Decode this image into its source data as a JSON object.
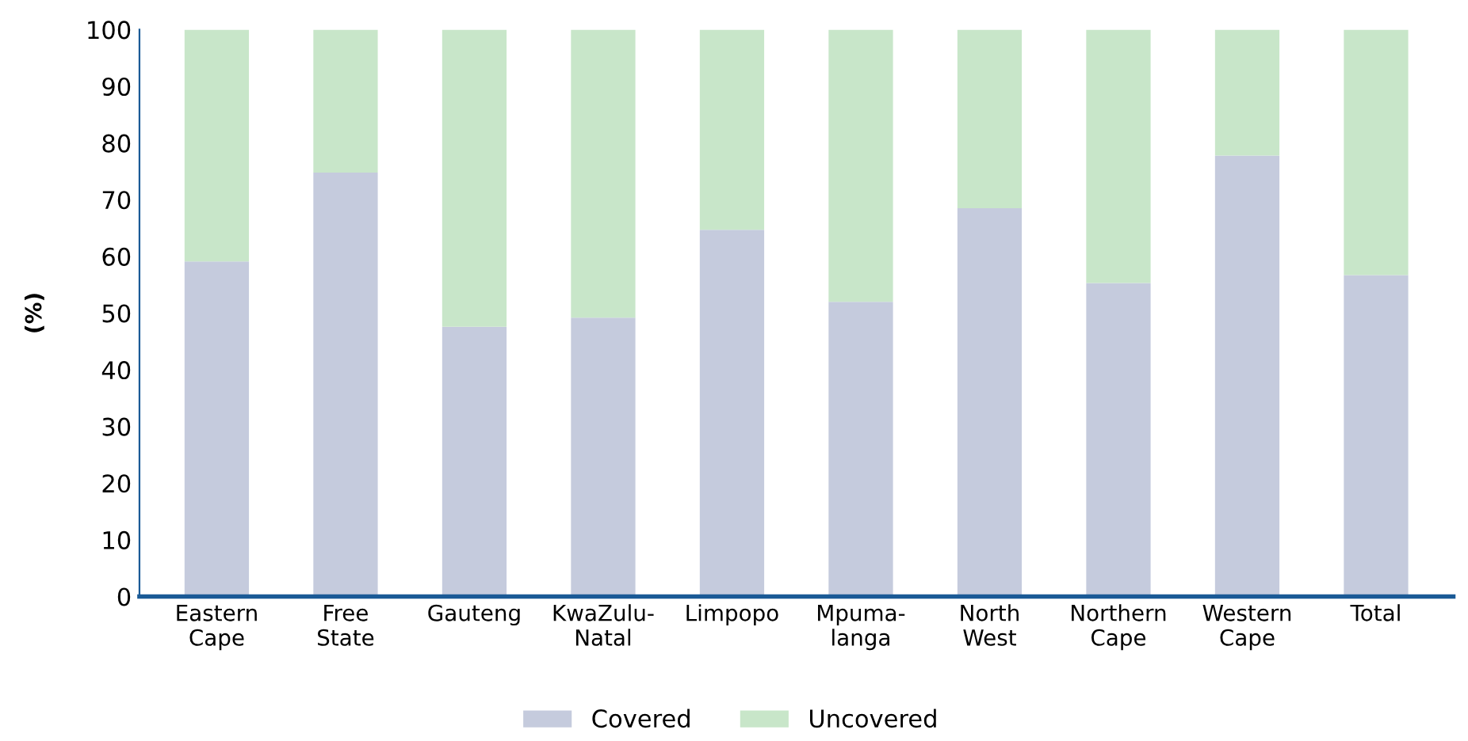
{
  "chart_data": {
    "type": "bar",
    "stacked": true,
    "ylabel": "(%)",
    "categories": [
      "Eastern\nCape",
      "Free\nState",
      "Gauteng",
      "KwaZulu-\nNatal",
      "Limpopo",
      "Mpuma-\nlanga",
      "North\nWest",
      "Northern\nCape",
      "Western\nCape",
      "Total"
    ],
    "series": [
      {
        "name": "Covered",
        "color": "#c5cbdd",
        "values": [
          59.1,
          74.8,
          47.6,
          49.2,
          64.7,
          52.0,
          68.5,
          55.3,
          77.8,
          56.7
        ]
      },
      {
        "name": "Uncovered",
        "color": "#c8e6c9",
        "values": [
          40.9,
          25.2,
          52.4,
          50.8,
          35.3,
          48.0,
          31.5,
          44.7,
          22.2,
          43.3
        ]
      }
    ],
    "ylim": [
      0,
      100
    ],
    "yticks": [
      0,
      10,
      20,
      30,
      40,
      50,
      60,
      70,
      80,
      90,
      100
    ],
    "grid": false,
    "legend": "bottom"
  }
}
